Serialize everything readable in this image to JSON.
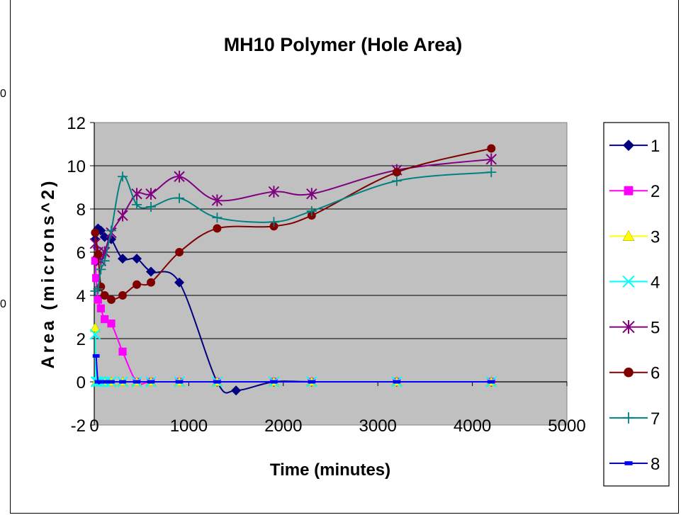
{
  "chart_data": {
    "type": "line",
    "title": "MH10 Polymer (Hole Area)",
    "xlabel": "Time (minutes)",
    "ylabel": "Area (microns^2)",
    "xlim": [
      0,
      5000
    ],
    "ylim": [
      -2,
      12
    ],
    "xticks": [
      0,
      1000,
      2000,
      3000,
      4000,
      5000
    ],
    "yticks": [
      -2,
      0,
      2,
      4,
      6,
      8,
      10,
      12
    ],
    "grid": true,
    "legend_position": "right",
    "plot_background": "#c0c0c0",
    "series": [
      {
        "name": "1",
        "color": "#000080",
        "marker": "diamond",
        "x": [
          10,
          40,
          70,
          110,
          180,
          300,
          450,
          600,
          900,
          1300,
          1500,
          1900,
          2300,
          3200,
          4200
        ],
        "y": [
          6.6,
          7.1,
          7.0,
          6.7,
          6.6,
          5.7,
          5.7,
          5.1,
          4.6,
          0.0,
          -0.4,
          0.0,
          0.0,
          0.0,
          0.0
        ]
      },
      {
        "name": "2",
        "color": "#ff00ff",
        "marker": "square",
        "x": [
          10,
          20,
          40,
          70,
          110,
          180,
          300,
          450,
          600,
          900,
          1300,
          1900,
          2300,
          3200,
          4200
        ],
        "y": [
          5.6,
          4.8,
          3.8,
          3.4,
          2.9,
          2.7,
          1.4,
          0.0,
          0.0,
          0.0,
          0.0,
          0.0,
          0.0,
          0.0,
          0.0
        ]
      },
      {
        "name": "3",
        "color": "#ffff00",
        "marker": "triangle",
        "x": [
          10,
          20,
          40,
          70,
          110,
          180,
          300,
          450,
          600,
          900,
          1300,
          1900,
          2300,
          3200,
          4200
        ],
        "y": [
          2.5,
          0.0,
          0.0,
          0.0,
          0.0,
          0.0,
          0.0,
          0.0,
          0.0,
          0.0,
          0.0,
          0.0,
          0.0,
          0.0,
          0.0
        ]
      },
      {
        "name": "4",
        "color": "#00ffff",
        "marker": "x",
        "x": [
          10,
          20,
          40,
          70,
          110,
          180,
          300,
          450,
          600,
          900,
          1300,
          1900,
          2300,
          3200,
          4200
        ],
        "y": [
          2.2,
          0.0,
          0.0,
          0.0,
          0.0,
          0.0,
          0.0,
          0.0,
          0.0,
          0.0,
          0.0,
          0.0,
          0.0,
          0.0,
          0.0
        ]
      },
      {
        "name": "5",
        "color": "#800080",
        "marker": "star",
        "x": [
          10,
          40,
          70,
          110,
          180,
          300,
          450,
          600,
          900,
          1300,
          1900,
          2300,
          3200,
          4200
        ],
        "y": [
          6.4,
          6.0,
          5.6,
          6.0,
          6.9,
          7.7,
          8.7,
          8.7,
          9.5,
          8.4,
          8.8,
          8.7,
          9.8,
          10.3
        ]
      },
      {
        "name": "6",
        "color": "#800000",
        "marker": "circle",
        "x": [
          10,
          40,
          70,
          110,
          180,
          300,
          450,
          600,
          900,
          1300,
          1900,
          2300,
          3200,
          4200
        ],
        "y": [
          6.9,
          5.9,
          4.4,
          4.0,
          3.8,
          4.0,
          4.5,
          4.6,
          6.0,
          7.1,
          7.2,
          7.7,
          9.7,
          10.8
        ]
      },
      {
        "name": "7",
        "color": "#008080",
        "marker": "plus",
        "x": [
          10,
          40,
          70,
          110,
          180,
          300,
          450,
          600,
          900,
          1300,
          1900,
          2300,
          3200,
          4200
        ],
        "y": [
          4.2,
          4.3,
          5.2,
          5.6,
          7.0,
          9.5,
          8.2,
          8.1,
          8.5,
          7.6,
          7.4,
          7.9,
          9.3,
          9.7
        ]
      },
      {
        "name": "8",
        "color": "#0000ff",
        "marker": "dash",
        "x": [
          20,
          40,
          70,
          110,
          180,
          300,
          450,
          600,
          900,
          1300,
          1900,
          2300,
          3200,
          4200
        ],
        "y": [
          1.2,
          0.0,
          0.0,
          0.0,
          0.0,
          0.0,
          0.0,
          0.0,
          0.0,
          0.0,
          0.0,
          0.0,
          0.0,
          0.0
        ]
      }
    ]
  },
  "stray_glyphs": [
    "0",
    "0"
  ]
}
